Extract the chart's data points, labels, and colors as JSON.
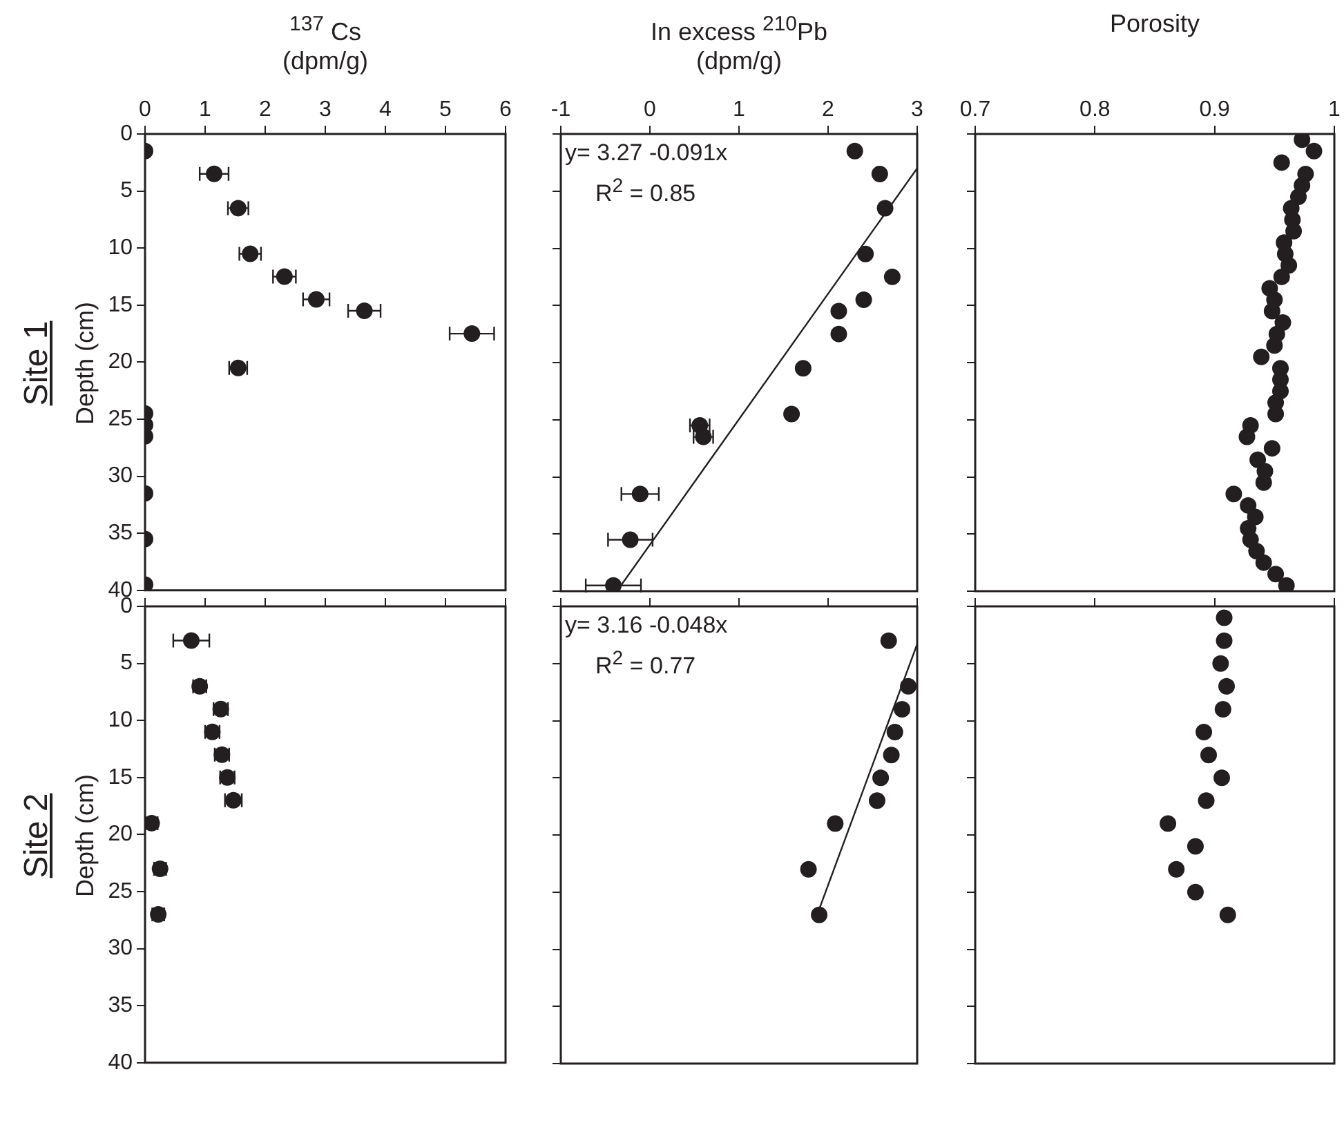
{
  "chart_data": [
    {
      "type": "scatter",
      "title": "Site 1",
      "xlabel": "$^{137}$ Cs\n(dpm/g)",
      "ylabel": "Depth (cm)",
      "xlim": [
        0,
        6
      ],
      "xticks": [
        0,
        1,
        2,
        3,
        4,
        5,
        6
      ],
      "ylim": [
        40,
        0
      ],
      "yticks": [
        0,
        5,
        10,
        15,
        20,
        25,
        30,
        35,
        40
      ],
      "marker": "circle",
      "series": [
        {
          "color": "#231f20",
          "x": [
            0,
            1.15,
            1.55,
            1.75,
            2.32,
            2.85,
            3.65,
            5.44,
            1.55,
            0,
            0,
            0,
            0,
            0,
            0
          ],
          "values": [
            1.5,
            3.5,
            6.5,
            10.5,
            12.5,
            14.5,
            15.5,
            17.5,
            20.5,
            24.5,
            25.5,
            26.5,
            31.5,
            35.5,
            39.5
          ],
          "xerrors": [
            null,
            0.24,
            0.17,
            0.18,
            0.19,
            0.22,
            0.27,
            0.37,
            0.15,
            null,
            null,
            null,
            null,
            null,
            null
          ]
        }
      ]
    },
    {
      "type": "scatter",
      "xlabel": "In excess $^{210}$Pb\n(dpm/g)",
      "xlim": [
        -1,
        3
      ],
      "xticks": [
        -1,
        0,
        1,
        2,
        3
      ],
      "ylim": [
        40,
        0
      ],
      "yticks": [
        0,
        5,
        10,
        15,
        20,
        25,
        30,
        35,
        40
      ],
      "tick_labels": "x",
      "marker": "circle",
      "annotations": [
        "y= 3.27 -0.091x",
        "R$^{2}$ = 0.85"
      ],
      "series": [
        {
          "color": "#231f20",
          "x": [
            2.3,
            2.58,
            2.64,
            2.42,
            2.72,
            2.4,
            2.12,
            2.12,
            1.72,
            1.59,
            0.56,
            0.6,
            -0.11,
            -0.22,
            -0.41
          ],
          "values": [
            1.5,
            3.5,
            6.5,
            10.5,
            12.5,
            14.5,
            15.5,
            17.5,
            20.5,
            24.5,
            25.5,
            26.5,
            31.5,
            35.5,
            39.5
          ],
          "xerrors": [
            0.04,
            0.04,
            0.04,
            0.04,
            0.04,
            0.04,
            0.04,
            0.04,
            0.04,
            0.04,
            0.11,
            0.11,
            0.21,
            0.25,
            0.31
          ]
        },
        {
          "type": "line",
          "color": "#231f20",
          "marker": "none",
          "x": [
            3.0,
            -0.37
          ],
          "values": [
            3.0,
            40
          ]
        }
      ]
    },
    {
      "type": "scatter",
      "xlabel": "Porosity",
      "xlim": [
        0.7,
        1
      ],
      "xticks": [
        0.7,
        0.8,
        0.9,
        1
      ],
      "ylim": [
        40,
        0
      ],
      "yticks": [
        0,
        5,
        10,
        15,
        20,
        25,
        30,
        35,
        40
      ],
      "tick_labels": "x",
      "marker": "circle",
      "series": [
        {
          "color": "#231f20",
          "x": [
            0.973,
            0.983,
            0.956,
            0.976,
            0.973,
            0.97,
            0.964,
            0.965,
            0.966,
            0.958,
            0.959,
            0.962,
            0.956,
            0.946,
            0.95,
            0.948,
            0.957,
            0.952,
            0.95,
            0.939,
            0.955,
            0.955,
            0.955,
            0.951,
            0.951,
            0.93,
            0.927,
            0.948,
            0.936,
            0.942,
            0.941,
            0.916,
            0.928,
            0.934,
            0.928,
            0.93,
            0.935,
            0.941,
            0.951,
            0.96
          ],
          "values": [
            0.5,
            1.5,
            2.5,
            3.5,
            4.5,
            5.5,
            6.5,
            7.5,
            8.5,
            9.5,
            10.5,
            11.5,
            12.5,
            13.5,
            14.5,
            15.5,
            16.5,
            17.5,
            18.5,
            19.5,
            20.5,
            21.5,
            22.5,
            23.5,
            24.5,
            25.5,
            26.5,
            27.5,
            28.5,
            29.5,
            30.5,
            31.5,
            32.5,
            33.5,
            34.5,
            35.5,
            36.5,
            37.5,
            38.5,
            39.5
          ]
        }
      ]
    },
    {
      "type": "scatter",
      "title": "Site 2",
      "ylabel": "Depth (cm)",
      "xlim": [
        0,
        6
      ],
      "xticks": [
        {
          "value": 0,
          "label": null
        },
        {
          "value": 1,
          "label": null
        },
        {
          "value": 2,
          "label": null
        },
        {
          "value": 3,
          "label": null
        },
        {
          "value": 4,
          "label": null
        },
        {
          "value": 5,
          "label": null
        },
        {
          "value": 6,
          "label": null
        }
      ],
      "ylim": [
        40,
        0
      ],
      "yticks": [
        0,
        5,
        10,
        15,
        20,
        25,
        30,
        35,
        40
      ],
      "tick_labels": "y",
      "marker": "circle",
      "series": [
        {
          "color": "#231f20",
          "x": [
            0.77,
            0.91,
            1.26,
            1.12,
            1.28,
            1.37,
            1.47,
            0.11,
            0.25,
            0.22
          ],
          "values": [
            3,
            7,
            9,
            11,
            13,
            15,
            17,
            19,
            23,
            27
          ],
          "xerrors": [
            0.3,
            0.11,
            0.12,
            0.12,
            0.12,
            0.12,
            0.14,
            0.1,
            0.1,
            0.1
          ]
        }
      ]
    },
    {
      "type": "scatter",
      "xlim": [
        -1,
        3
      ],
      "xticks": [
        {
          "value": -1,
          "label": null
        },
        {
          "value": 0,
          "label": null
        },
        {
          "value": 1,
          "label": null
        },
        {
          "value": 2,
          "label": null
        },
        {
          "value": 3,
          "label": null
        }
      ],
      "ylim": [
        40,
        0
      ],
      "yticks": [
        {
          "value": 0,
          "label": null
        },
        {
          "value": 5,
          "label": null
        },
        {
          "value": 10,
          "label": null
        },
        {
          "value": 15,
          "label": null
        },
        {
          "value": 20,
          "label": null
        },
        {
          "value": 25,
          "label": null
        },
        {
          "value": 30,
          "label": null
        },
        {
          "value": 35,
          "label": null
        },
        {
          "value": 40,
          "label": null
        }
      ],
      "tick_labels": false,
      "marker": "circle",
      "annotations": [
        "y= 3.16 -0.048x",
        "R$^{2}$ = 0.77"
      ],
      "series": [
        {
          "color": "#231f20",
          "x": [
            2.68,
            2.9,
            2.83,
            2.75,
            2.71,
            2.59,
            2.55,
            2.08,
            1.78,
            1.9
          ],
          "values": [
            3,
            7,
            9,
            11,
            13,
            15,
            17,
            19,
            23,
            27
          ],
          "xerrors": [
            0.04,
            0.04,
            0.04,
            0.04,
            0.04,
            0.04,
            0.04,
            0.04,
            0.04,
            0.04
          ]
        },
        {
          "type": "line",
          "color": "#231f20",
          "marker": "none",
          "x": [
            1.9,
            3.0
          ],
          "values": [
            26.5,
            3.3
          ]
        }
      ]
    },
    {
      "type": "scatter",
      "xlim": [
        0.7,
        1
      ],
      "xticks": [
        {
          "value": 0.7,
          "label": null
        },
        {
          "value": 0.8,
          "label": null
        },
        {
          "value": 0.9,
          "label": null
        },
        {
          "value": 1,
          "label": null
        }
      ],
      "ylim": [
        40,
        0
      ],
      "yticks": [
        {
          "value": 0,
          "label": null
        },
        {
          "value": 5,
          "label": null
        },
        {
          "value": 10,
          "label": null
        },
        {
          "value": 15,
          "label": null
        },
        {
          "value": 20,
          "label": null
        },
        {
          "value": 25,
          "label": null
        },
        {
          "value": 30,
          "label": null
        },
        {
          "value": 35,
          "label": null
        },
        {
          "value": 40,
          "label": null
        }
      ],
      "tick_labels": false,
      "marker": "circle",
      "series": [
        {
          "color": "#231f20",
          "x": [
            0.908,
            0.908,
            0.905,
            0.91,
            0.907,
            0.891,
            0.895,
            0.906,
            0.893,
            0.861,
            0.884,
            0.868,
            0.884,
            0.911
          ],
          "values": [
            1,
            3,
            5,
            7,
            9,
            11,
            13,
            15,
            17,
            19,
            21,
            23,
            25,
            27
          ]
        }
      ]
    }
  ]
}
